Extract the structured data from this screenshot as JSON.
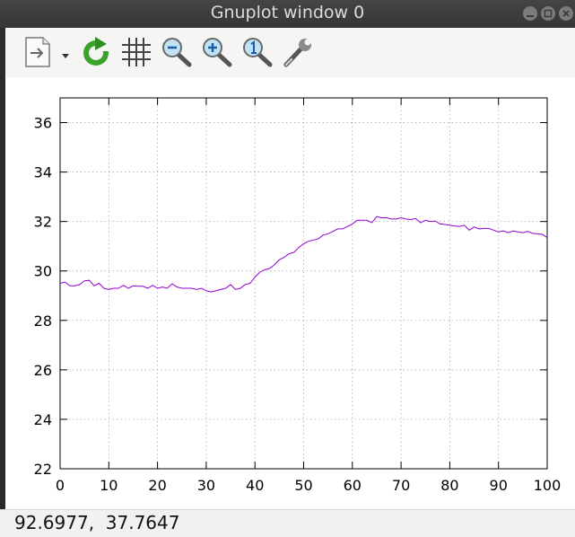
{
  "window": {
    "title": "Gnuplot window 0"
  },
  "toolbar": {
    "buttons": [
      {
        "name": "export-icon"
      },
      {
        "name": "replot-icon"
      },
      {
        "name": "grid-icon"
      },
      {
        "name": "zoom-previous-icon"
      },
      {
        "name": "zoom-next-icon"
      },
      {
        "name": "autoscale-icon"
      },
      {
        "name": "settings-wrench-icon"
      }
    ]
  },
  "status": {
    "coords": "92.6977,  37.7647"
  },
  "colors": {
    "line": "#9400d3",
    "grid": "#a0a0a0",
    "titlebar": "#3b3b3b"
  },
  "chart_data": {
    "type": "line",
    "xlim": [
      0,
      100
    ],
    "ylim": [
      22,
      37
    ],
    "xticks": [
      0,
      10,
      20,
      30,
      40,
      50,
      60,
      70,
      80,
      90,
      100
    ],
    "yticks": [
      22,
      24,
      26,
      28,
      30,
      32,
      34,
      36
    ],
    "grid": true,
    "series": [
      {
        "x": [
          0,
          1,
          2,
          3,
          4,
          5,
          6,
          7,
          8,
          9,
          10,
          11,
          12,
          13,
          14,
          15,
          16,
          17,
          18,
          19,
          20,
          21,
          22,
          23,
          24,
          25,
          26,
          27,
          28,
          29,
          30,
          31,
          32,
          33,
          34,
          35,
          36,
          37,
          38,
          39,
          40,
          41,
          42,
          43,
          44,
          45,
          46,
          47,
          48,
          49,
          50,
          51,
          52,
          53,
          54,
          55,
          56,
          57,
          58,
          59,
          60,
          61,
          62,
          63,
          64,
          65,
          66,
          67,
          68,
          69,
          70,
          71,
          72,
          73,
          74,
          75,
          76,
          77,
          78,
          79,
          80,
          81,
          82,
          83,
          84,
          85,
          86,
          87,
          88,
          89,
          90,
          91,
          92,
          93,
          94,
          95,
          96,
          97,
          98,
          99,
          100
        ],
        "values": [
          29.5,
          29.55,
          29.4,
          29.4,
          29.45,
          29.6,
          29.62,
          29.4,
          29.5,
          29.3,
          29.25,
          29.3,
          29.3,
          29.42,
          29.3,
          29.4,
          29.38,
          29.38,
          29.3,
          29.42,
          29.3,
          29.35,
          29.3,
          29.48,
          29.35,
          29.3,
          29.3,
          29.3,
          29.25,
          29.3,
          29.2,
          29.15,
          29.2,
          29.25,
          29.3,
          29.45,
          29.25,
          29.3,
          29.45,
          29.5,
          29.75,
          29.95,
          30.05,
          30.1,
          30.25,
          30.45,
          30.55,
          30.7,
          30.75,
          30.95,
          31.1,
          31.2,
          31.25,
          31.3,
          31.45,
          31.5,
          31.6,
          31.7,
          31.7,
          31.8,
          31.9,
          32.05,
          32.05,
          32.05,
          31.95,
          32.2,
          32.15,
          32.15,
          32.1,
          32.1,
          32.15,
          32.1,
          32.08,
          32.12,
          31.95,
          32.05,
          32.0,
          32.02,
          31.9,
          31.88,
          31.85,
          31.82,
          31.8,
          31.85,
          31.65,
          31.78,
          31.7,
          31.72,
          31.72,
          31.65,
          31.58,
          31.62,
          31.55,
          31.62,
          31.58,
          31.55,
          31.6,
          31.52,
          31.5,
          31.48,
          31.35
        ]
      }
    ]
  }
}
